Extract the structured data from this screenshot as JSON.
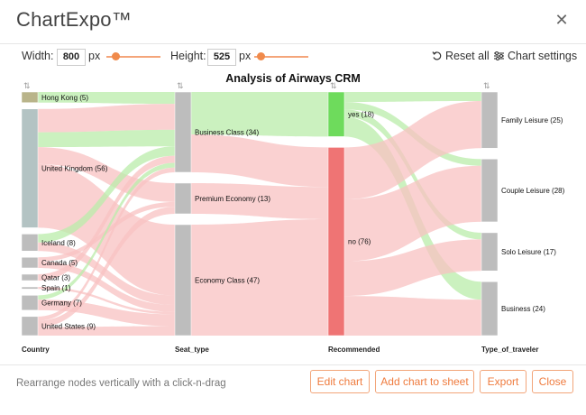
{
  "app": {
    "title": "ChartExpo™"
  },
  "controls": {
    "width_label": "Width:",
    "width_value": "800",
    "width_unit": "px",
    "height_label": "Height:",
    "height_value": "525",
    "height_unit": "px",
    "reset_label": "Reset all",
    "settings_label": "Chart settings"
  },
  "chart_data": {
    "type": "sankey",
    "title": "Analysis of Airways CRM",
    "stages": [
      "Country",
      "Seat_type",
      "Recommended",
      "Type_of_traveler"
    ],
    "nodes": [
      {
        "id": "hk",
        "stage": 0,
        "name": "Hong Kong",
        "value": 5,
        "label": "Hong Kong (5)",
        "color": "#b9b48a"
      },
      {
        "id": "uk",
        "stage": 0,
        "name": "United Kingdom",
        "value": 56,
        "label": "United Kingdom (56)",
        "color": "#b3c3c3"
      },
      {
        "id": "ic",
        "stage": 0,
        "name": "Iceland",
        "value": 8,
        "label": "Iceland (8)",
        "color": "#bdbdbd"
      },
      {
        "id": "ca",
        "stage": 0,
        "name": "Canada",
        "value": 5,
        "label": "Canada (5)",
        "color": "#bdbdbd"
      },
      {
        "id": "qa",
        "stage": 0,
        "name": "Qatar",
        "value": 3,
        "label": "Qatar (3)",
        "color": "#bdbdbd"
      },
      {
        "id": "sp",
        "stage": 0,
        "name": "Spain",
        "value": 1,
        "label": "Spain (1)",
        "color": "#bdbdbd"
      },
      {
        "id": "ge",
        "stage": 0,
        "name": "Germany",
        "value": 7,
        "label": "Germany (7)",
        "color": "#bdbdbd"
      },
      {
        "id": "us",
        "stage": 0,
        "name": "United States",
        "value": 9,
        "label": "United States (9)",
        "color": "#bdbdbd"
      },
      {
        "id": "bc",
        "stage": 1,
        "name": "Business Class",
        "value": 34,
        "label": "Business Class (34)",
        "color": "#bdbdbd"
      },
      {
        "id": "pe",
        "stage": 1,
        "name": "Premium Economy",
        "value": 13,
        "label": "Premium Economy (13)",
        "color": "#bdbdbd"
      },
      {
        "id": "ec",
        "stage": 1,
        "name": "Economy Class",
        "value": 47,
        "label": "Economy Class (47)",
        "color": "#bdbdbd"
      },
      {
        "id": "yes",
        "stage": 2,
        "name": "yes",
        "value": 18,
        "label": "yes (18)",
        "color": "#6edb5c"
      },
      {
        "id": "no",
        "stage": 2,
        "name": "no",
        "value": 76,
        "label": "no (76)",
        "color": "#ef7474"
      },
      {
        "id": "fl",
        "stage": 3,
        "name": "Family Leisure",
        "value": 25,
        "label": "Family Leisure (25)",
        "color": "#bdbdbd"
      },
      {
        "id": "cl",
        "stage": 3,
        "name": "Couple Leisure",
        "value": 28,
        "label": "Couple Leisure (28)",
        "color": "#bdbdbd"
      },
      {
        "id": "sl",
        "stage": 3,
        "name": "Solo Leisure",
        "value": 17,
        "label": "Solo Leisure (17)",
        "color": "#bdbdbd"
      },
      {
        "id": "bu",
        "stage": 3,
        "name": "Business",
        "value": 24,
        "label": "Business (24)",
        "color": "#bdbdbd"
      }
    ],
    "links": [
      {
        "source": "hk",
        "target": "bc",
        "value": 5,
        "kind": "yes"
      },
      {
        "source": "uk",
        "target": "bc",
        "value": 11,
        "kind": "no"
      },
      {
        "source": "uk",
        "target": "bc",
        "value": 7,
        "kind": "yes"
      },
      {
        "source": "uk",
        "target": "pe",
        "value": 8,
        "kind": "no"
      },
      {
        "source": "uk",
        "target": "ec",
        "value": 30,
        "kind": "no"
      },
      {
        "source": "ic",
        "target": "bc",
        "value": 4,
        "kind": "yes"
      },
      {
        "source": "ic",
        "target": "ec",
        "value": 4,
        "kind": "no"
      },
      {
        "source": "ca",
        "target": "pe",
        "value": 2,
        "kind": "no"
      },
      {
        "source": "ca",
        "target": "ec",
        "value": 3,
        "kind": "no"
      },
      {
        "source": "qa",
        "target": "bc",
        "value": 3,
        "kind": "no"
      },
      {
        "source": "sp",
        "target": "ec",
        "value": 1,
        "kind": "no"
      },
      {
        "source": "ge",
        "target": "bc",
        "value": 2,
        "kind": "yes"
      },
      {
        "source": "ge",
        "target": "ec",
        "value": 5,
        "kind": "no"
      },
      {
        "source": "us",
        "target": "bc",
        "value": 2,
        "kind": "no"
      },
      {
        "source": "us",
        "target": "pe",
        "value": 3,
        "kind": "no"
      },
      {
        "source": "us",
        "target": "ec",
        "value": 4,
        "kind": "no"
      },
      {
        "source": "bc",
        "target": "yes",
        "value": 18,
        "kind": "yes"
      },
      {
        "source": "bc",
        "target": "no",
        "value": 16,
        "kind": "no"
      },
      {
        "source": "pe",
        "target": "no",
        "value": 13,
        "kind": "no"
      },
      {
        "source": "ec",
        "target": "no",
        "value": 47,
        "kind": "no"
      },
      {
        "source": "yes",
        "target": "fl",
        "value": 4,
        "kind": "yes"
      },
      {
        "source": "yes",
        "target": "cl",
        "value": 3,
        "kind": "yes"
      },
      {
        "source": "yes",
        "target": "sl",
        "value": 3,
        "kind": "yes"
      },
      {
        "source": "yes",
        "target": "bu",
        "value": 8,
        "kind": "yes"
      },
      {
        "source": "no",
        "target": "fl",
        "value": 21,
        "kind": "no"
      },
      {
        "source": "no",
        "target": "cl",
        "value": 25,
        "kind": "no"
      },
      {
        "source": "no",
        "target": "sl",
        "value": 14,
        "kind": "no"
      },
      {
        "source": "no",
        "target": "bu",
        "value": 16,
        "kind": "no"
      }
    ],
    "link_colors": {
      "yes": "#b9eca9",
      "no": "#f8c1c1"
    }
  },
  "footer": {
    "hint": "Rearrange nodes vertically with a click-n-drag",
    "edit_label": "Edit chart",
    "add_label": "Add chart to sheet",
    "export_label": "Export",
    "close_label": "Close"
  }
}
